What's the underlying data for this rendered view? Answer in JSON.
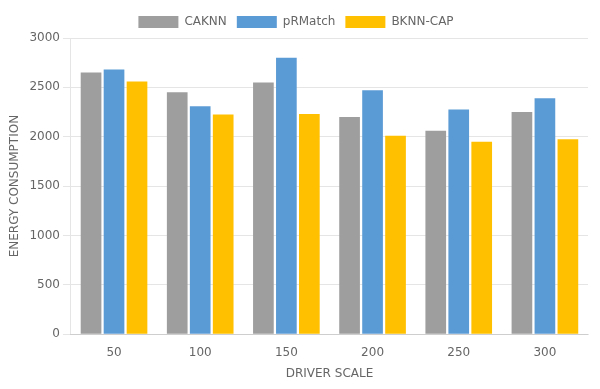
{
  "chart_data": {
    "type": "bar",
    "categories": [
      50,
      100,
      150,
      200,
      250,
      300
    ],
    "series": [
      {
        "name": "CAKNN",
        "color": "#9e9e9e",
        "values": [
          2650,
          2450,
          2550,
          2200,
          2060,
          2250
        ]
      },
      {
        "name": "pRMatch",
        "color": "#5b9bd5",
        "values": [
          2680,
          2310,
          2800,
          2470,
          2275,
          2390
        ]
      },
      {
        "name": "BKNN-CAP",
        "color": "#ffc000",
        "values": [
          2560,
          2225,
          2230,
          2010,
          1950,
          1975
        ]
      }
    ],
    "xlabel": "DRIVER SCALE",
    "ylabel": "ENERGY CONSUMPTION",
    "ylim": [
      0,
      3000
    ],
    "yticks": [
      0,
      500,
      1000,
      1500,
      2000,
      2500,
      3000
    ],
    "grid": true,
    "legend": "top"
  }
}
